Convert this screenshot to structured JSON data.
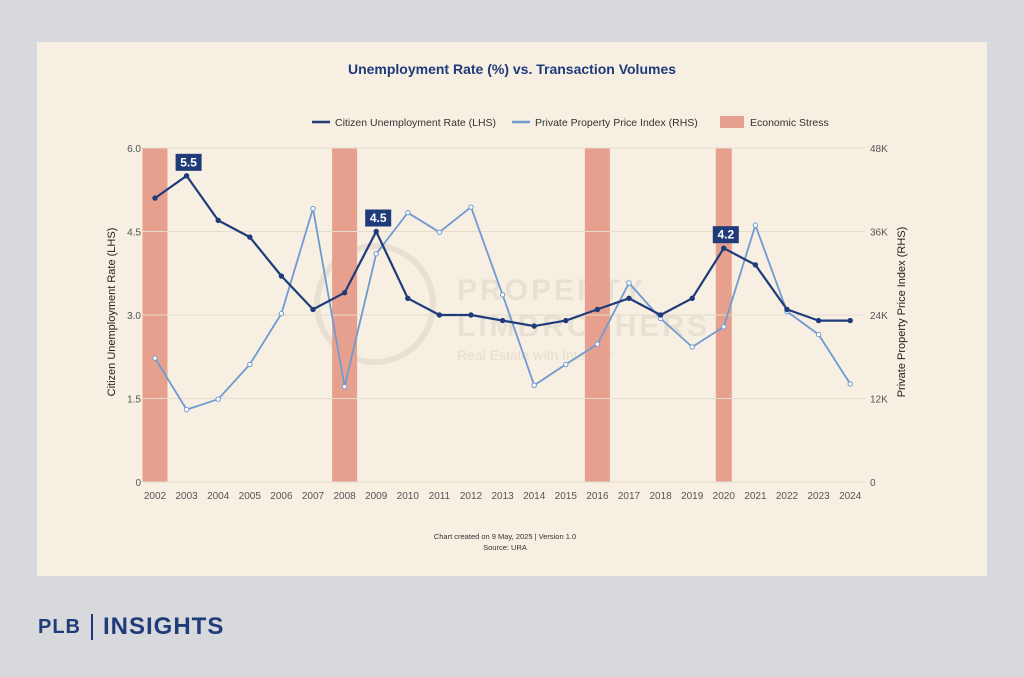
{
  "chart_data": {
    "type": "line",
    "title": "Unemployment Rate (%) vs. Transaction Volumes",
    "categories": [
      "2002",
      "2003",
      "2004",
      "2005",
      "2006",
      "2007",
      "2008",
      "2009",
      "2010",
      "2011",
      "2012",
      "2013",
      "2014",
      "2015",
      "2016",
      "2017",
      "2018",
      "2019",
      "2020",
      "2021",
      "2022",
      "2023",
      "2024"
    ],
    "series": [
      {
        "name": "Citizen Unemployment Rate (LHS)",
        "axis": "left",
        "color": "#1f3b7a",
        "values": [
          5.1,
          5.5,
          4.7,
          4.4,
          3.7,
          3.1,
          3.4,
          4.5,
          3.3,
          3.0,
          3.0,
          2.9,
          2.8,
          2.9,
          3.1,
          3.3,
          3.0,
          3.3,
          4.2,
          3.9,
          3.1,
          2.9,
          2.9
        ]
      },
      {
        "name": "Private Property Price Index (RHS)",
        "axis": "right",
        "color": "#6f9bd1",
        "values": [
          17800,
          10400,
          11900,
          16900,
          24200,
          39300,
          13700,
          32800,
          38700,
          35900,
          39500,
          26900,
          13900,
          16900,
          19800,
          28600,
          23500,
          19400,
          22300,
          36900,
          24500,
          21200,
          14100
        ]
      }
    ],
    "stress_years": [
      "2002",
      "2008",
      "2016",
      "2020"
    ],
    "stress_label": "Economic Stress",
    "stress_color": "#e8a08e",
    "annotations": [
      {
        "category": "2003",
        "value": 5.5,
        "label": "5.5"
      },
      {
        "category": "2009",
        "value": 4.5,
        "label": "4.5"
      },
      {
        "category": "2020",
        "value": 4.2,
        "label": "4.2"
      }
    ],
    "ylabel_left": "Citizen Unemployment Rate (LHS)",
    "ylabel_right": "Private Property Price Index (RHS)",
    "ylim_left": [
      0,
      6
    ],
    "ylim_right": [
      0,
      48000
    ],
    "yticks_left": [
      "0",
      "1.5",
      "3.0",
      "4.5",
      "6.0"
    ],
    "yticks_right": [
      "0",
      "12K",
      "24K",
      "36K",
      "48K"
    ],
    "legend_position": "top-right",
    "grid": true
  },
  "watermark": {
    "line1": "PROPERTY",
    "line2": "LIMBROTHERS",
    "line3": "Real Estate with Integrity"
  },
  "footnote": {
    "line1": "Chart created on 9 May, 2025 | Version 1.0",
    "line2": "Source: URA"
  },
  "brand": {
    "plb": "PLB",
    "insights": "INSIGHTS"
  },
  "colors": {
    "navy": "#1f3b7a",
    "light_blue": "#6f9bd1",
    "card_bg": "#f6efe2",
    "page_bg": "#d7d9dc"
  }
}
